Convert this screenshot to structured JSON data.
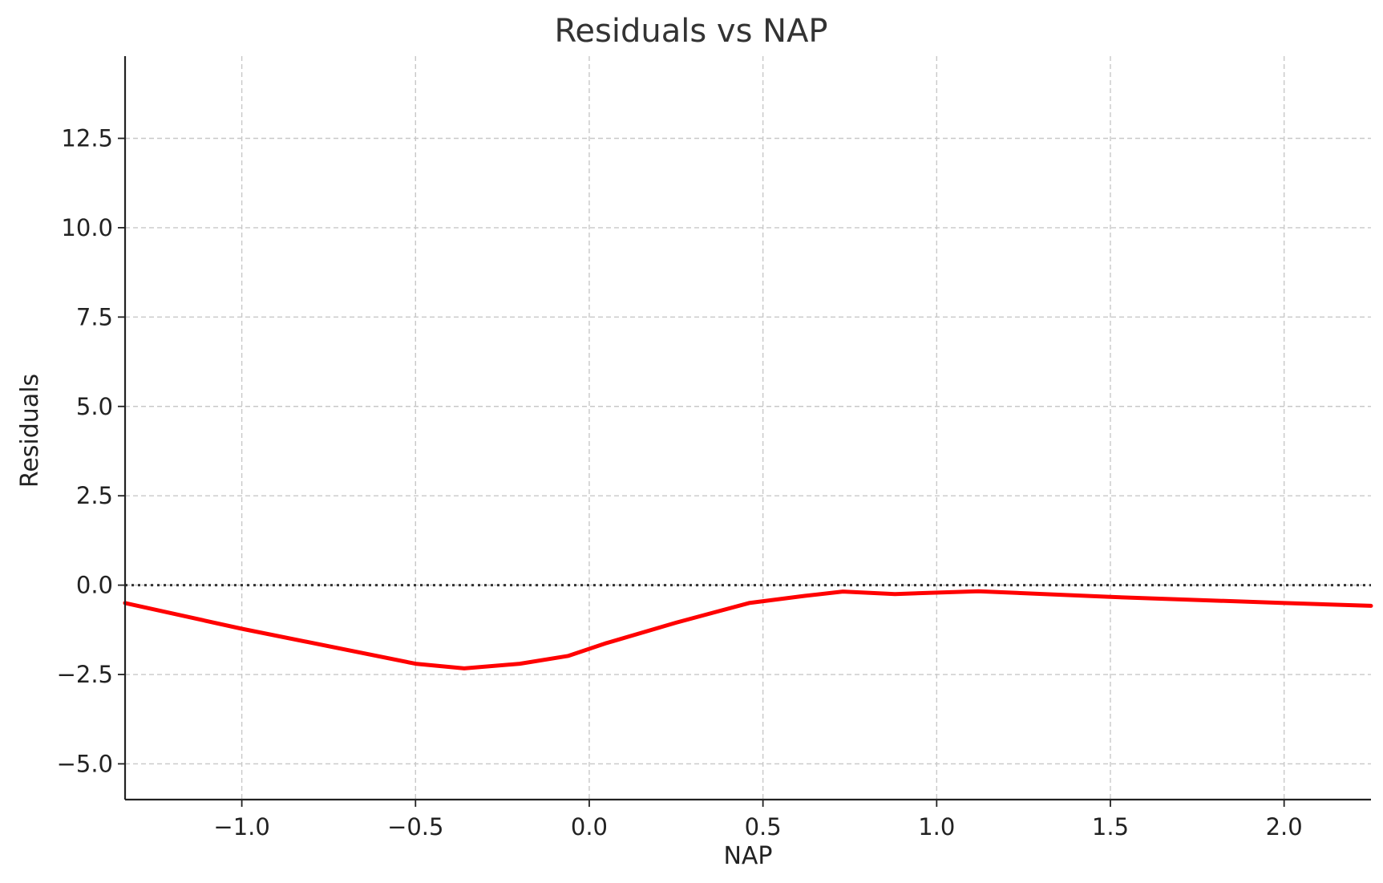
{
  "chart_data": {
    "type": "line",
    "title": "Residuals vs NAP",
    "xlabel": "NAP",
    "ylabel": "Residuals",
    "xlim": [
      -1.336,
      2.25
    ],
    "ylim": [
      -6.0,
      14.8
    ],
    "x_ticks": [
      -1.0,
      -0.5,
      0.0,
      0.5,
      1.0,
      1.5,
      2.0
    ],
    "x_tick_labels": [
      "−1.0",
      "−0.5",
      "0.0",
      "0.5",
      "1.0",
      "1.5",
      "2.0"
    ],
    "y_ticks": [
      -5.0,
      -2.5,
      0.0,
      2.5,
      5.0,
      7.5,
      10.0,
      12.5
    ],
    "y_tick_labels": [
      "−5.0",
      "−2.5",
      "0.0",
      "2.5",
      "5.0",
      "7.5",
      "10.0",
      "12.5"
    ],
    "grid": true,
    "reference_line": {
      "y": 0.0,
      "style": "dotted",
      "color": "#333333"
    },
    "series": [
      {
        "color": "#ff0000",
        "x": [
          -1.336,
          -1.0,
          -0.5,
          -0.36,
          -0.2,
          -0.06,
          0.05,
          0.25,
          0.46,
          0.62,
          0.73,
          0.88,
          1.12,
          1.5,
          2.0,
          2.25
        ],
        "y": [
          -0.5,
          -1.22,
          -2.2,
          -2.33,
          -2.2,
          -1.98,
          -1.62,
          -1.05,
          -0.5,
          -0.3,
          -0.18,
          -0.25,
          -0.17,
          -0.33,
          -0.5,
          -0.58
        ]
      }
    ]
  }
}
